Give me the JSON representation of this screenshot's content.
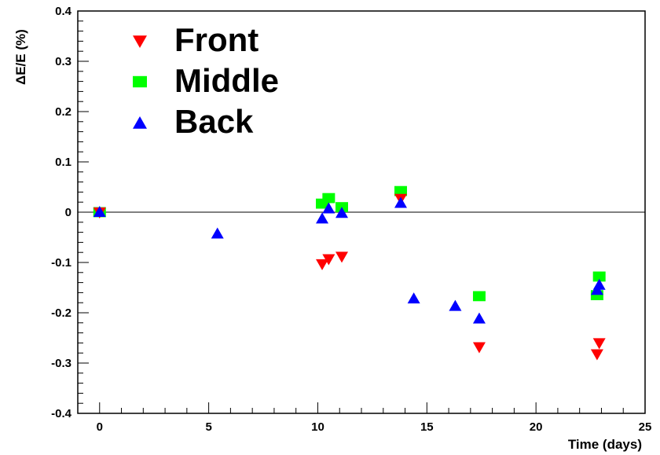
{
  "chart_data": {
    "type": "scatter",
    "xlabel": "Time (days)",
    "ylabel": "ΔE/E (%)",
    "xlim": [
      -1,
      25
    ],
    "ylim": [
      -0.4,
      0.4
    ],
    "x_ticks": [
      0,
      5,
      10,
      15,
      20,
      25
    ],
    "y_ticks": [
      -0.4,
      -0.3,
      -0.2,
      -0.1,
      0,
      0.1,
      0.2,
      0.3,
      0.4
    ],
    "x_tick_labels": [
      "0",
      "5",
      "10",
      "15",
      "20",
      "25"
    ],
    "y_tick_labels": [
      "-0.4",
      "-0.3",
      "-0.2",
      "-0.1",
      "0",
      "0.1",
      "0.2",
      "0.3",
      "0.4"
    ],
    "reference_line_y": 0,
    "grid": false,
    "legend_position": "top-left",
    "series": [
      {
        "name": "Front",
        "marker": "triangle-down",
        "color": "#ff0000",
        "points": [
          {
            "x": 0.0,
            "y": 0.0
          },
          {
            "x": 10.2,
            "y": -0.103
          },
          {
            "x": 10.5,
            "y": -0.093
          },
          {
            "x": 11.1,
            "y": -0.088
          },
          {
            "x": 13.8,
            "y": 0.027
          },
          {
            "x": 17.4,
            "y": -0.268
          },
          {
            "x": 22.8,
            "y": -0.282
          },
          {
            "x": 22.9,
            "y": -0.26
          }
        ]
      },
      {
        "name": "Middle",
        "marker": "square",
        "color": "#00ff00",
        "points": [
          {
            "x": 0.0,
            "y": 0.0
          },
          {
            "x": 10.2,
            "y": 0.017
          },
          {
            "x": 10.5,
            "y": 0.028
          },
          {
            "x": 11.1,
            "y": 0.01
          },
          {
            "x": 13.8,
            "y": 0.042
          },
          {
            "x": 17.4,
            "y": -0.167
          },
          {
            "x": 22.8,
            "y": -0.165
          },
          {
            "x": 22.9,
            "y": -0.128
          }
        ]
      },
      {
        "name": "Back",
        "marker": "triangle-up",
        "color": "#0000ff",
        "points": [
          {
            "x": 0.0,
            "y": 0.0
          },
          {
            "x": 5.4,
            "y": -0.043
          },
          {
            "x": 10.2,
            "y": -0.013
          },
          {
            "x": 10.5,
            "y": 0.007
          },
          {
            "x": 11.1,
            "y": -0.002
          },
          {
            "x": 13.8,
            "y": 0.018
          },
          {
            "x": 14.4,
            "y": -0.172
          },
          {
            "x": 16.3,
            "y": -0.187
          },
          {
            "x": 17.4,
            "y": -0.212
          },
          {
            "x": 22.8,
            "y": -0.155
          },
          {
            "x": 22.9,
            "y": -0.145
          }
        ]
      }
    ]
  }
}
